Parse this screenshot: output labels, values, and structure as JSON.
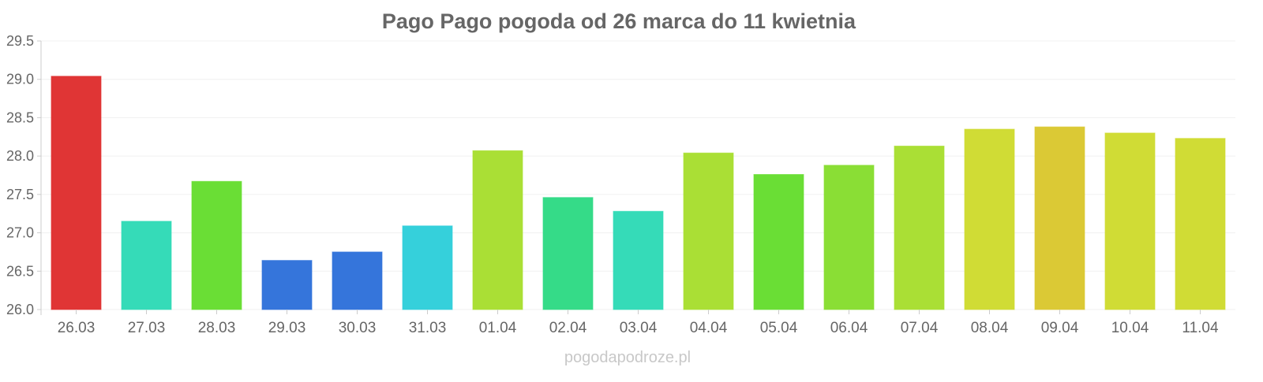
{
  "chart_data": {
    "type": "bar",
    "title": "Pago Pago pogoda od 26 marca do 11 kwietnia",
    "xlabel": "",
    "ylabel": "",
    "ylim": [
      26.0,
      29.5
    ],
    "yticks": [
      "26.0",
      "26.5",
      "27.0",
      "27.5",
      "28.0",
      "28.5",
      "29.0",
      "29.5"
    ],
    "grid": true,
    "categories": [
      "26.03",
      "27.03",
      "28.03",
      "29.03",
      "30.03",
      "31.03",
      "01.04",
      "02.04",
      "03.04",
      "04.04",
      "05.04",
      "06.04",
      "07.04",
      "08.04",
      "09.04",
      "10.04",
      "11.04"
    ],
    "values": [
      29.04,
      27.15,
      27.67,
      26.64,
      26.75,
      27.09,
      28.07,
      27.46,
      27.28,
      28.04,
      27.76,
      27.88,
      28.13,
      28.35,
      28.38,
      28.3,
      28.23
    ],
    "colors": [
      "#e03535",
      "#35dbb8",
      "#6ade35",
      "#3575db",
      "#3575db",
      "#35d0db",
      "#aadf35",
      "#35db88",
      "#35dbb8",
      "#aadf35",
      "#6ade35",
      "#8ade35",
      "#aadf35",
      "#d0dc35",
      "#dbc935",
      "#d0dc35",
      "#d0dc35"
    ]
  },
  "watermark": "pogodapodroze.pl"
}
